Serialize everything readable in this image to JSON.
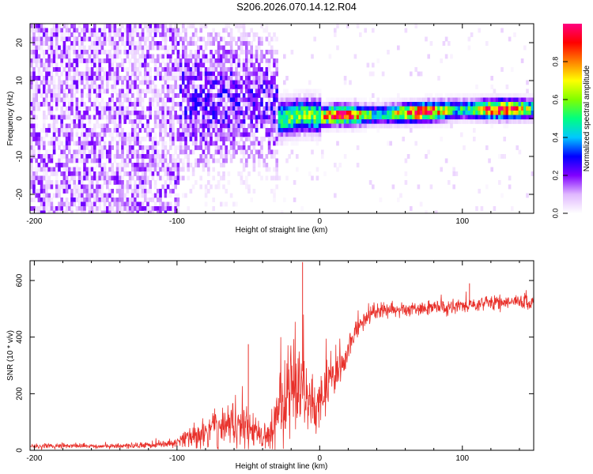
{
  "title": "S206.2026.070.14.12.R04",
  "chart_data": [
    {
      "type": "heatmap",
      "name": "spectrogram",
      "xlabel": "Height of straight line (km)",
      "ylabel": "Frequency (Hz)",
      "xlim": [
        -203,
        150
      ],
      "ylim": [
        -25,
        25
      ],
      "xticks": [
        -200,
        -100,
        0,
        100
      ],
      "xtick_labels": [
        "-200",
        "-100",
        "0",
        "100"
      ],
      "yticks": [
        -20,
        -10,
        0,
        10,
        20
      ],
      "ytick_labels": [
        "-20",
        "-10",
        "0",
        "10",
        "20"
      ],
      "colorbar": {
        "label": "Normalized spectral amplitude",
        "range": [
          0,
          1
        ],
        "ticks": [
          0.0,
          0.2,
          0.4,
          0.6,
          0.8
        ],
        "tick_labels": [
          "0.0",
          "0.2",
          "0.4",
          "0.6",
          "0.8"
        ],
        "colors": [
          "#ffffff",
          "#e0b8ff",
          "#8000ff",
          "#0000ff",
          "#00c8ff",
          "#00ff80",
          "#80ff00",
          "#ffff00",
          "#ff8000",
          "#ff0000",
          "#ff0080"
        ]
      },
      "ridge": {
        "description": "dominant frequency track (Hz) vs height (km)",
        "x": [
          -40,
          -30,
          -20,
          -10,
          0,
          10,
          20,
          40,
          60,
          80,
          100,
          120,
          150
        ],
        "y": [
          2.5,
          0.5,
          1.0,
          1.5,
          1.0,
          1.5,
          1.5,
          1.5,
          2.0,
          2.5,
          3.0,
          3.0,
          3.0
        ]
      },
      "regions": [
        {
          "x_range": [
            -203,
            -100
          ],
          "amplitude": "low",
          "pattern": "scattered noise across all frequencies"
        },
        {
          "x_range": [
            -100,
            -30
          ],
          "amplitude": "low-medium",
          "pattern": "clustered near 0-10 Hz"
        },
        {
          "x_range": [
            -30,
            150
          ],
          "amplitude": "high",
          "pattern": "narrow band near 1-3 Hz"
        }
      ]
    },
    {
      "type": "line",
      "name": "snr",
      "xlabel": "Height of straight line (km)",
      "ylabel": "SNR (10 * v/v)",
      "xlim": [
        -203,
        150
      ],
      "ylim": [
        0,
        670
      ],
      "xticks": [
        -200,
        -100,
        0,
        100
      ],
      "xtick_labels": [
        "-200",
        "-100",
        "0",
        "100"
      ],
      "yticks": [
        0,
        200,
        400,
        600
      ],
      "ytick_labels": [
        "0",
        "200",
        "400",
        "600"
      ],
      "color": "#e8302a",
      "series": [
        {
          "name": "SNR",
          "x": [
            -203,
            -180,
            -160,
            -140,
            -120,
            -105,
            -100,
            -95,
            -90,
            -85,
            -80,
            -75,
            -70,
            -65,
            -60,
            -55,
            -50,
            -45,
            -40,
            -35,
            -30,
            -25,
            -20,
            -15,
            -12,
            -10,
            -5,
            0,
            5,
            10,
            15,
            20,
            25,
            30,
            35,
            40,
            50,
            60,
            70,
            80,
            90,
            100,
            110,
            120,
            130,
            140,
            150
          ],
          "y": [
            15,
            15,
            15,
            15,
            18,
            22,
            30,
            40,
            45,
            55,
            65,
            75,
            85,
            95,
            90,
            85,
            80,
            75,
            35,
            40,
            140,
            180,
            240,
            260,
            280,
            200,
            150,
            190,
            230,
            260,
            300,
            360,
            420,
            450,
            475,
            490,
            495,
            500,
            500,
            505,
            505,
            510,
            515,
            520,
            520,
            525,
            525
          ],
          "noise": [
            8,
            8,
            8,
            8,
            10,
            15,
            22,
            28,
            40,
            50,
            55,
            60,
            70,
            80,
            80,
            70,
            70,
            60,
            30,
            60,
            120,
            140,
            160,
            180,
            150,
            110,
            100,
            100,
            90,
            80,
            60,
            50,
            40,
            30,
            30,
            28,
            25,
            25,
            25,
            25,
            25,
            25,
            25,
            25,
            25,
            25,
            25
          ],
          "peaks": [
            {
              "x": -12,
              "y": 665
            },
            {
              "x": 105,
              "y": 590
            },
            {
              "x": -50,
              "y": 375
            }
          ]
        }
      ]
    }
  ]
}
